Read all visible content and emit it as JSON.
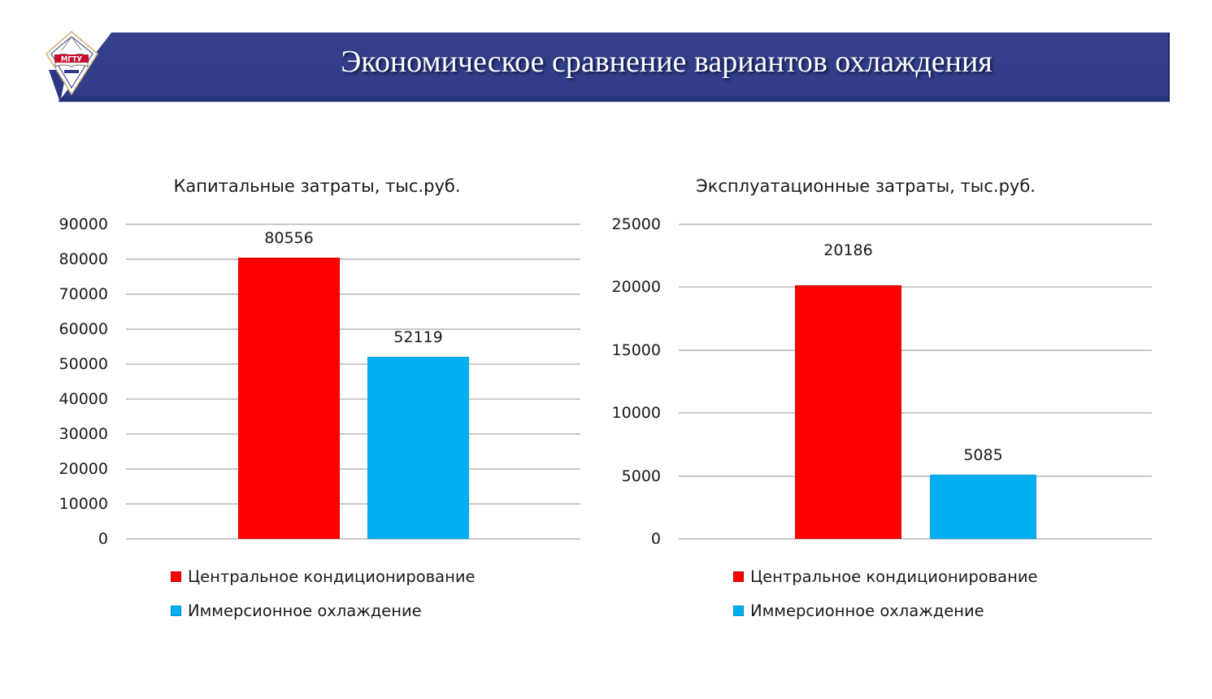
{
  "slide": {
    "title": "Экономическое сравнение вариантов охлаждения",
    "logo_text": "МГТУ",
    "banner_color": "#323e8a"
  },
  "series_colors": {
    "Центральное кондиционирование": "#ff0000",
    "Иммерсионное охлаждение": "#00b0f0"
  },
  "charts": {
    "capital": {
      "title": "Капитальные затраты, тыс.руб.",
      "y_ticks": [
        "90000",
        "80000",
        "70000",
        "60000",
        "50000",
        "40000",
        "30000",
        "20000",
        "10000",
        "0"
      ],
      "labels": [
        "80556",
        "52119"
      ],
      "legend": [
        "Центральное кондиционирование",
        "Иммерсионное охлаждение"
      ]
    },
    "operating": {
      "title": "Эксплуатационные затраты, тыс.руб.",
      "y_ticks": [
        "25000",
        "20000",
        "15000",
        "10000",
        "5000",
        "0"
      ],
      "labels": [
        "20186",
        "5085"
      ],
      "legend": [
        "Центральное кондиционирование",
        "Иммерсионное охлаждение"
      ]
    }
  },
  "chart_data": [
    {
      "type": "bar",
      "title": "Капитальные затраты, тыс.руб.",
      "categories": [
        ""
      ],
      "series": [
        {
          "name": "Центральное кондиционирование",
          "values": [
            80556
          ],
          "color": "#ff0000"
        },
        {
          "name": "Иммерсионное охлаждение",
          "values": [
            52119
          ],
          "color": "#00b0f0"
        }
      ],
      "xlabel": "",
      "ylabel": "",
      "ylim": [
        0,
        90000
      ],
      "yticks": [
        0,
        10000,
        20000,
        30000,
        40000,
        50000,
        60000,
        70000,
        80000,
        90000
      ],
      "grid": true,
      "data_labels": true,
      "legend_position": "bottom"
    },
    {
      "type": "bar",
      "title": "Эксплуатационные затраты, тыс.руб.",
      "categories": [
        ""
      ],
      "series": [
        {
          "name": "Центральное кондиционирование",
          "values": [
            20186
          ],
          "color": "#ff0000"
        },
        {
          "name": "Иммерсионное охлаждение",
          "values": [
            5085
          ],
          "color": "#00b0f0"
        }
      ],
      "xlabel": "",
      "ylabel": "",
      "ylim": [
        0,
        25000
      ],
      "yticks": [
        0,
        5000,
        10000,
        15000,
        20000,
        25000
      ],
      "grid": true,
      "data_labels": true,
      "legend_position": "bottom"
    }
  ]
}
